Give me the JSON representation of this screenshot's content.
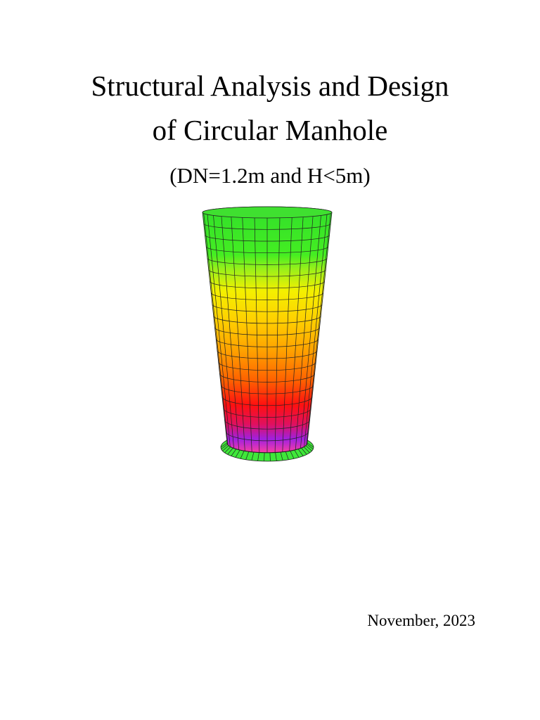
{
  "title": [
    "Structural Analysis and Design",
    "of Circular Manhole"
  ],
  "subtitle": "(DN=1.2m and H<5m)",
  "date": "November, 2023"
}
